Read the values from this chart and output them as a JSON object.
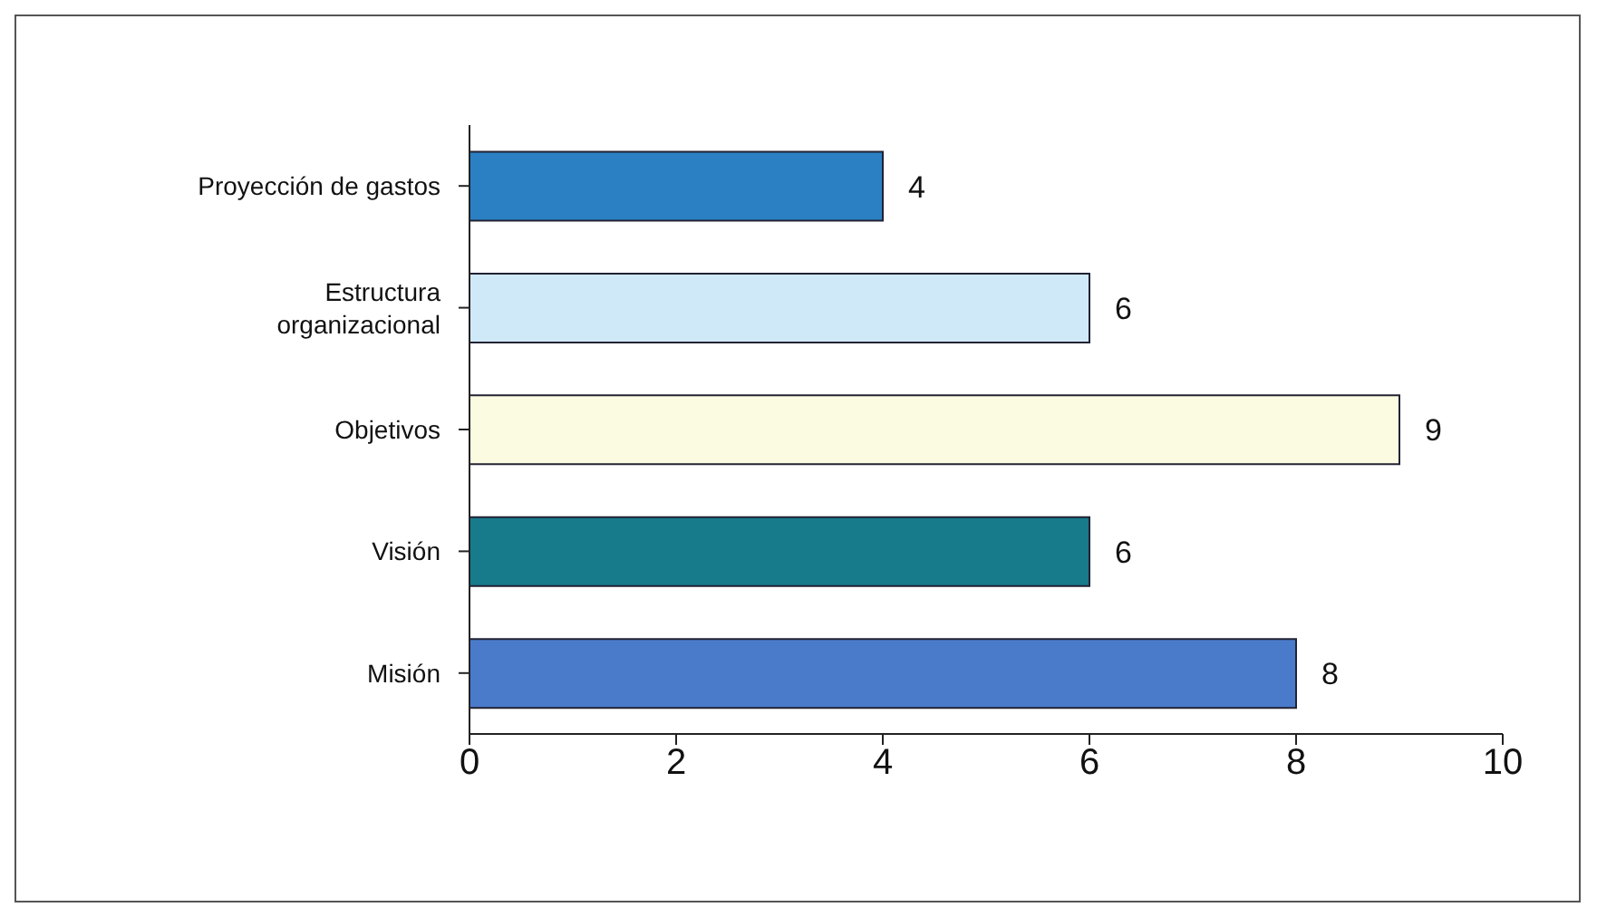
{
  "chart_data": {
    "type": "bar",
    "orientation": "horizontal",
    "categories": [
      "Proyección de gastos",
      "Estructura organizacional",
      "Objetivos",
      "Visión",
      "Misión"
    ],
    "values": [
      4,
      6,
      9,
      6,
      8
    ],
    "colors": [
      "#2b80c4",
      "#cfe9f8",
      "#fbfbe2",
      "#177b8c",
      "#4a7bcb"
    ],
    "xlim": [
      0,
      10
    ],
    "xticks": [
      0,
      2,
      4,
      6,
      8,
      10
    ],
    "data_labels": true,
    "grid": false,
    "legend": false
  }
}
